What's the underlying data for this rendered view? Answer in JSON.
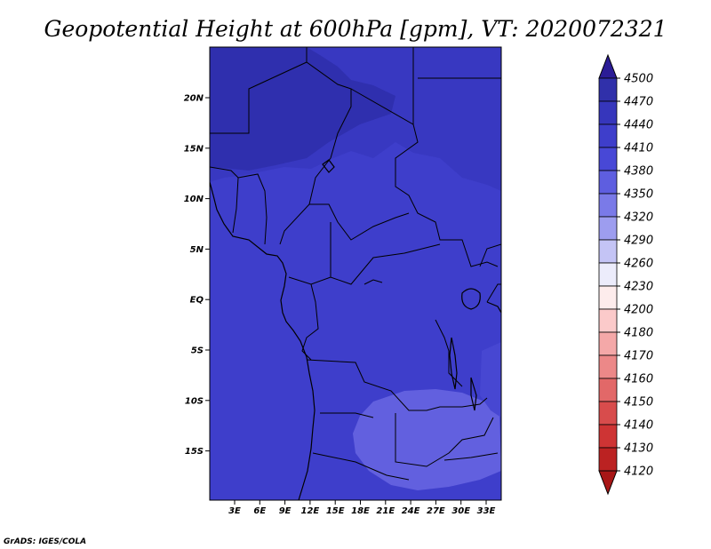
{
  "title": "Geopotential Height at 600hPa [gpm], VT: 2020072321",
  "credit": "GrADS: IGES/COLA",
  "map": {
    "lat_labels": [
      "20N",
      "15N",
      "10N",
      "5N",
      "EQ",
      "5S",
      "10S",
      "15S"
    ],
    "lon_labels": [
      "3E",
      "6E",
      "9E",
      "12E",
      "15E",
      "18E",
      "21E",
      "24E",
      "27E",
      "30E",
      "33E"
    ],
    "field_colors": {
      "base": "#3e3ecb",
      "north": "#3838c1",
      "northwest": "#2f2fae",
      "south_anomaly": "#6260df",
      "east_strip": "#4747d2"
    }
  },
  "colorbar": {
    "labels": [
      "4500",
      "4470",
      "4440",
      "4410",
      "4380",
      "4350",
      "4320",
      "4290",
      "4260",
      "4230",
      "4200",
      "4180",
      "4170",
      "4160",
      "4150",
      "4140",
      "4130",
      "4120"
    ],
    "colors": [
      "#2b1c96",
      "#3030aa",
      "#3636bc",
      "#3e3ecb",
      "#4848d6",
      "#5e5ee0",
      "#7a7ae8",
      "#9d9def",
      "#c4c4f5",
      "#ececfb",
      "#fdecec",
      "#fbcaca",
      "#f4a8a8",
      "#ec8888",
      "#e26868",
      "#d84c4c",
      "#ce3434",
      "#bb2222",
      "#a81616"
    ]
  }
}
